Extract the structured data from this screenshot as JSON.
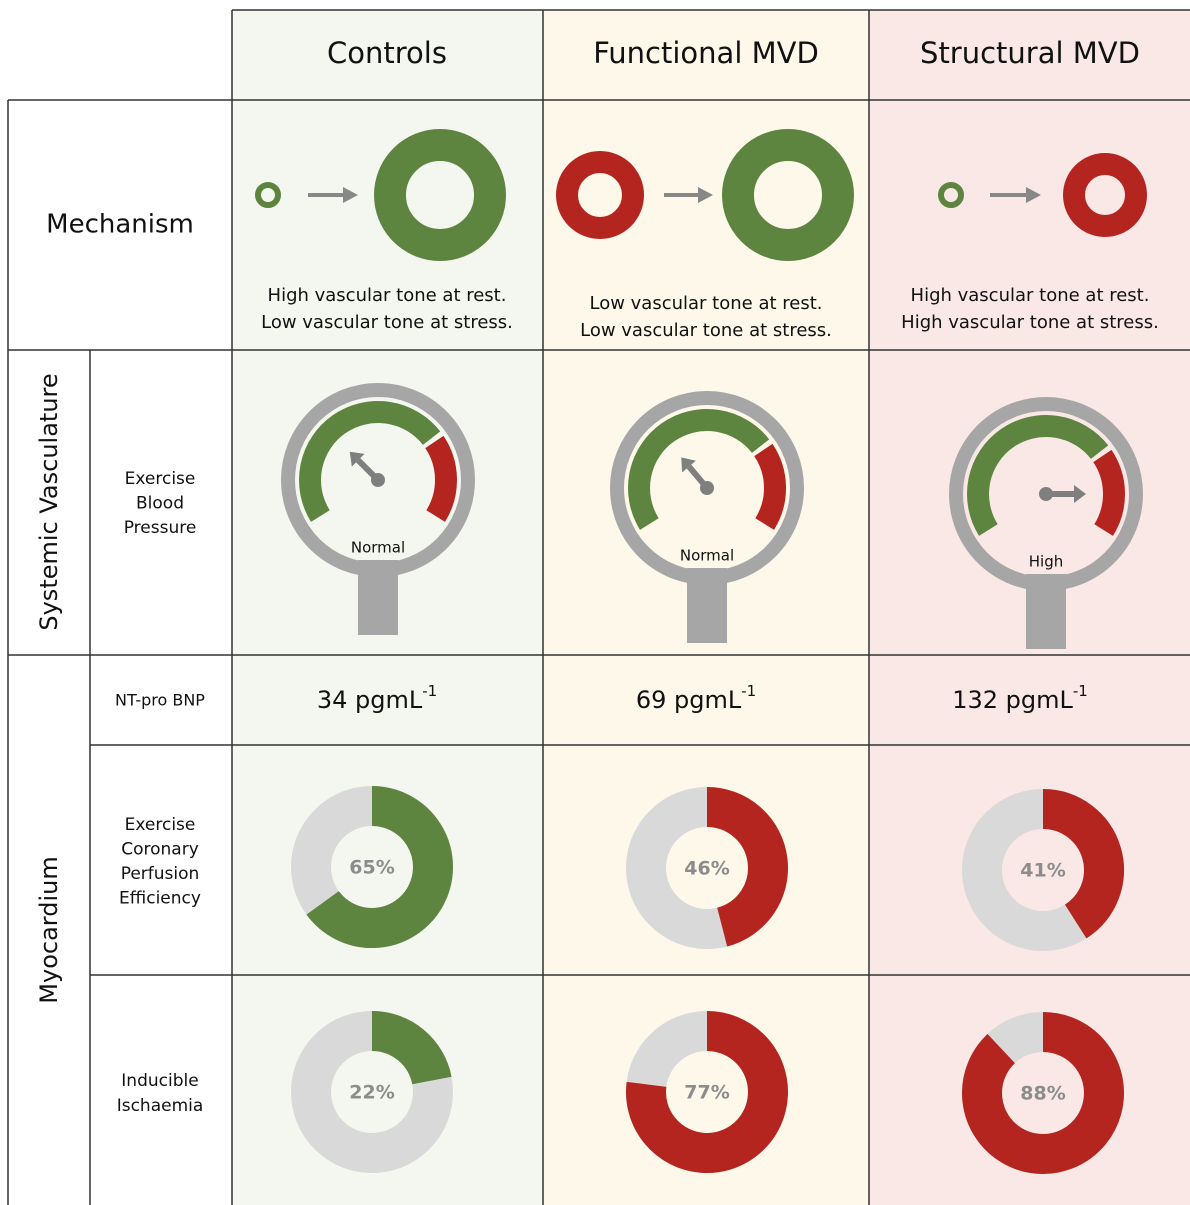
{
  "columns": [
    {
      "title": "Controls",
      "color": "#5e8540",
      "mechanism": [
        "High vascular tone at rest.",
        "Low vascular tone at stress."
      ],
      "blood_pressure": "Normal",
      "nt_pro_bnp": {
        "text": "34 pgmL",
        "superscript": "-1"
      },
      "perfusion_efficiency": {
        "value": 65,
        "label": "65%"
      },
      "ischaemia": {
        "value": 22,
        "label": "22%"
      }
    },
    {
      "title": "Functional MVD",
      "color": "#b5251f",
      "mechanism": [
        "Low vascular tone at rest.",
        "Low vascular tone at stress."
      ],
      "blood_pressure": "Normal",
      "nt_pro_bnp": {
        "text": "69 pgmL",
        "superscript": "-1"
      },
      "perfusion_efficiency": {
        "value": 46,
        "label": "46%"
      },
      "ischaemia": {
        "value": 77,
        "label": "77%"
      }
    },
    {
      "title": "Structural MVD",
      "color": "#b5251f",
      "mechanism": [
        "High vascular tone at rest.",
        "High vascular tone at stress."
      ],
      "blood_pressure": "High",
      "nt_pro_bnp": {
        "text": "132 pgmL",
        "superscript": "-1"
      },
      "perfusion_efficiency": {
        "value": 41,
        "label": "41%"
      },
      "ischaemia": {
        "value": 88,
        "label": "88%"
      }
    }
  ],
  "row_labels": {
    "mechanism": "Mechanism",
    "systemic": "Systemic Vasculature",
    "blood_pressure": [
      "Exercise",
      "Blood",
      "Pressure"
    ],
    "myocardium": "Myocardium",
    "nt_pro_bnp": "NT-pro BNP",
    "perfusion_efficiency": [
      "Exercise",
      "Coronary",
      "Perfusion",
      "Efficiency"
    ],
    "ischaemia": [
      "Inducible",
      "Ischaemia"
    ]
  }
}
